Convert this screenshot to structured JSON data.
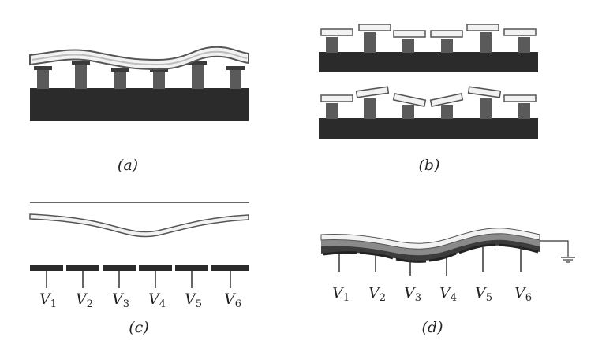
{
  "figure": {
    "panels": [
      {
        "id": "a",
        "label": "(a)",
        "title": ""
      },
      {
        "id": "b",
        "label": "(b)",
        "title": ""
      },
      {
        "id": "c",
        "label": "(c)",
        "title": ""
      },
      {
        "id": "d",
        "label": "(d)",
        "title": ""
      }
    ],
    "electrodes_c": [
      {
        "symbol": "V",
        "index": "1"
      },
      {
        "symbol": "V",
        "index": "2"
      },
      {
        "symbol": "V",
        "index": "3"
      },
      {
        "symbol": "V",
        "index": "4"
      },
      {
        "symbol": "V",
        "index": "5"
      },
      {
        "symbol": "V",
        "index": "6"
      }
    ],
    "electrodes_d": [
      {
        "symbol": "V",
        "index": "1"
      },
      {
        "symbol": "V",
        "index": "2"
      },
      {
        "symbol": "V",
        "index": "3"
      },
      {
        "symbol": "V",
        "index": "4"
      },
      {
        "symbol": "V",
        "index": "5"
      },
      {
        "symbol": "V",
        "index": "6"
      }
    ],
    "colors": {
      "substrate": "#2b2b2b",
      "actuator": "#5a5a5a",
      "mirror_fill": "#f2f2f2",
      "mirror_stroke": "#555555",
      "piezo_dark": "#3c3c3c",
      "piezo_mid": "#8a8a8a",
      "line": "#333333"
    }
  }
}
